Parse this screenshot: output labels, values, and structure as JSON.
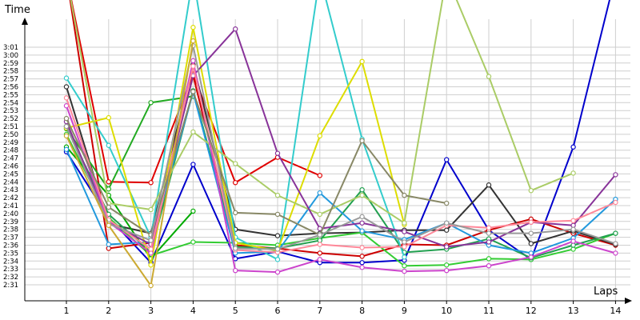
{
  "chart_data": {
    "type": "line",
    "xlabel": "Laps",
    "ylabel": "Time",
    "x": [
      1,
      2,
      3,
      4,
      5,
      6,
      7,
      8,
      9,
      10,
      11,
      12,
      13,
      14
    ],
    "y_ticks": [
      "2:31",
      "2:32",
      "2:33",
      "2:34",
      "2:35",
      "2:36",
      "2:37",
      "2:38",
      "2:39",
      "2:40",
      "2:41",
      "2:42",
      "2:43",
      "2:44",
      "2:45",
      "2:46",
      "2:47",
      "2:48",
      "2:49",
      "2:50",
      "2:51",
      "2:52",
      "2:53",
      "2:54",
      "2:55",
      "2:56",
      "2:57",
      "2:58",
      "2:59",
      "3:00",
      "3:01"
    ],
    "ylim_seconds": [
      150,
      182
    ],
    "grid": true,
    "series": [
      {
        "color": "#0000cc",
        "values": [
          167.8,
          159.5,
          153.8,
          166.2,
          154.3,
          155.2,
          153.8,
          153.8,
          154.1,
          166.8,
          157.9,
          154.2,
          168.4,
          190
        ]
      },
      {
        "color": "#e00000",
        "values": [
          190,
          164.0,
          163.9,
          177.6,
          163.9,
          167.1,
          164.8,
          null,
          null,
          null,
          null,
          null,
          null,
          null
        ]
      },
      {
        "color": "#cc0000",
        "values": [
          190,
          155.6,
          156.3,
          177.4,
          156.0,
          155.6,
          155.0,
          154.6,
          156.1,
          156.0,
          157.9,
          159.3,
          157.5,
          156.0
        ]
      },
      {
        "color": "#333333",
        "values": [
          176.0,
          158.7,
          157.5,
          178.8,
          158.0,
          157.2,
          157.5,
          157.6,
          157.9,
          157.9,
          163.6,
          156.2,
          157.8,
          156.1
        ]
      },
      {
        "color": "#22aa22",
        "values": [
          170.7,
          163.1,
          174.0,
          174.8,
          null,
          null,
          null,
          null,
          null,
          null,
          null,
          null,
          null,
          null
        ]
      },
      {
        "color": "#33cc33",
        "values": [
          170.0,
          159.5,
          154.7,
          156.4,
          156.3,
          156.0,
          156.9,
          157.6,
          153.4,
          153.5,
          154.3,
          154.2,
          155.5,
          157.5
        ]
      },
      {
        "color": "#00aa00",
        "values": [
          168.4,
          162.3,
          154.3,
          160.3,
          null,
          null,
          null,
          null,
          null,
          null,
          null,
          null,
          null,
          null
        ]
      },
      {
        "color": "#22a050",
        "values": [
          171.0,
          159.9,
          155.1,
          175.5,
          155.8,
          155.6,
          156.6,
          163.0,
          155.1,
          155.5,
          156.8,
          154.4,
          156.0,
          157.5
        ]
      },
      {
        "color": "#2299dd",
        "values": [
          168.1,
          156.1,
          156.4,
          175.3,
          155.0,
          155.2,
          162.6,
          157.8,
          156.7,
          158.8,
          156.0,
          155.0,
          156.9,
          161.8
        ]
      },
      {
        "color": "#33cccc",
        "values": [
          177.1,
          168.6,
          157.0,
          190,
          157.0,
          154.2,
          190,
          169.4,
          154.5,
          null,
          null,
          null,
          null,
          null
        ]
      },
      {
        "color": "#dddd00",
        "values": [
          170.8,
          172.1,
          153.5,
          183.5,
          156.3,
          155.3,
          169.8,
          179.2,
          158.6,
          null,
          null,
          null,
          null,
          null
        ]
      },
      {
        "color": "#aacc66",
        "values": [
          190,
          161.3,
          160.5,
          170.3,
          166.3,
          162.3,
          159.9,
          162.3,
          158.8,
          190,
          177.3,
          162.9,
          165.1,
          null
        ]
      },
      {
        "color": "#883399",
        "values": [
          171.6,
          158.9,
          156.1,
          177.4,
          183.3,
          167.6,
          158.1,
          158.8,
          157.7,
          155.8,
          156.4,
          158.9,
          158.5,
          164.9
        ]
      },
      {
        "color": "#cc44cc",
        "values": [
          173.6,
          158.9,
          155.0,
          179.3,
          152.8,
          152.6,
          154.2,
          153.2,
          152.7,
          152.8,
          153.4,
          154.5,
          156.5,
          155.0
        ]
      },
      {
        "color": "#ff8899",
        "values": [
          174.6,
          159.2,
          155.5,
          178.6,
          155.4,
          155.1,
          156.1,
          155.7,
          155.8,
          158.5,
          158.2,
          158.9,
          159.1,
          161.4
        ]
      },
      {
        "color": "#888866",
        "values": [
          172.0,
          160.8,
          157.3,
          175.4,
          160.1,
          159.9,
          157.3,
          169.2,
          162.3,
          161.3,
          null,
          null,
          null,
          null
        ]
      },
      {
        "color": "#999999",
        "values": [
          171.0,
          158.7,
          156.6,
          181.2,
          155.6,
          155.5,
          157.3,
          159.6,
          156.4,
          158.8,
          157.5,
          157.5,
          158.0,
          156.2
        ]
      },
      {
        "color": "#ccaa33",
        "values": [
          169.8,
          158.5,
          150.9,
          181.8,
          null,
          null,
          null,
          null,
          null,
          null,
          null,
          null,
          null,
          null
        ]
      }
    ]
  }
}
